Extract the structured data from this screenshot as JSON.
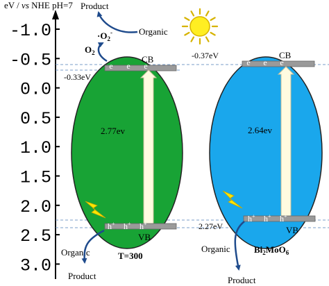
{
  "axis": {
    "label_parts": [
      "eV / ",
      "vs",
      " NHE pH=7"
    ],
    "ticks": [
      "-1.0",
      "-0.5",
      "0.0",
      "0.5",
      "1.0",
      "1.5",
      "2.0",
      "2.5",
      "3.0"
    ]
  },
  "sun": {
    "icon": "sun-icon",
    "color": "#ffee22",
    "outline": "#d6b300"
  },
  "left": {
    "fill": "#18a335",
    "cb_value": "-0.33eV",
    "vb_value": "",
    "gap": "2.77ev",
    "cb_label": "CB",
    "vb_label": "VB",
    "electron": "e",
    "hole": "h",
    "hole_sup": "+",
    "name": "T=300",
    "radical": {
      "o2": "O",
      "o2_sub": "2",
      "superoxide_dot": "·",
      "superoxide_o": "O",
      "superoxide_sub": "2",
      "superoxide_sup": "-"
    },
    "top_product": "Product",
    "top_organic": "Organic",
    "bottom_organic": "Organic",
    "bottom_product": "Product"
  },
  "right": {
    "fill": "#1aa7ec",
    "cb_value": "-0.37eV",
    "vb_value": "2.27eV",
    "gap": "2.64ev",
    "cb_label": "CB",
    "vb_label": "VB",
    "electron": "e",
    "hole": "h",
    "hole_sup": "+",
    "name_parts": [
      "Bi",
      "2",
      "MoO",
      "6"
    ],
    "bottom_organic": "Organic",
    "bottom_product": "Product"
  },
  "colors": {
    "band_bar": "#9a9a9a",
    "arrow_fill": "#fffbe0",
    "arrow_stroke": "#c8c09a",
    "curve": "#1f4b8c",
    "dashed": "#7a9cc8",
    "lightning": "#ffe600"
  }
}
